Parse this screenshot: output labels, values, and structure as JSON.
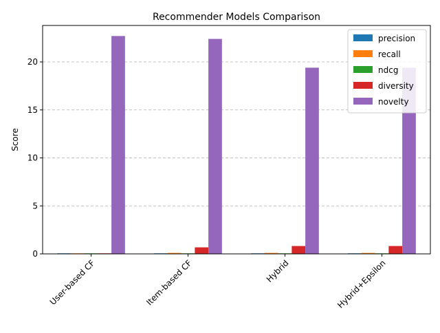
{
  "chart_data": {
    "type": "bar",
    "title": "Recommender Models Comparison",
    "xlabel": "",
    "ylabel": "Score",
    "categories": [
      "User-based CF",
      "Item-based CF",
      "Hybrid",
      "Hybrid+Epsilon"
    ],
    "series": [
      {
        "name": "precision",
        "color": "#1f77b4",
        "values": [
          0.01,
          0.02,
          0.02,
          0.02
        ]
      },
      {
        "name": "recall",
        "color": "#ff7f0e",
        "values": [
          0.01,
          0.1,
          0.1,
          0.1
        ]
      },
      {
        "name": "ndcg",
        "color": "#2ca02c",
        "values": [
          0.01,
          0.03,
          0.03,
          0.03
        ]
      },
      {
        "name": "diversity",
        "color": "#d62728",
        "values": [
          0.03,
          0.68,
          0.82,
          0.82
        ]
      },
      {
        "name": "novelty",
        "color": "#9467bd",
        "values": [
          22.7,
          22.4,
          19.4,
          19.4
        ]
      }
    ],
    "ylim": [
      0,
      23.8
    ],
    "yticks": [
      0,
      5,
      10,
      15,
      20
    ],
    "ytick_labels": [
      "0",
      "5",
      "10",
      "15",
      "20"
    ],
    "grid": "y-dashed",
    "legend_position": "top-right",
    "tick_rotation_deg": 45
  }
}
